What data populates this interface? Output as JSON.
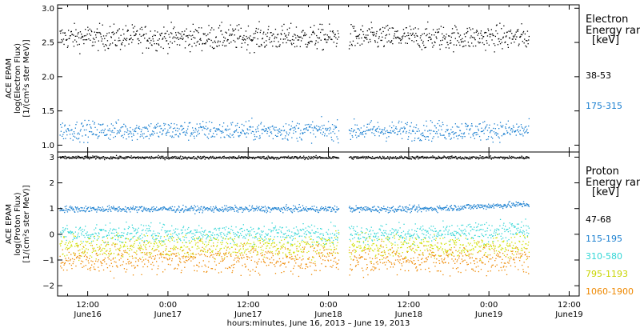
{
  "chart_data": [
    {
      "type": "scatter",
      "panel": "electron",
      "ylabel": [
        "ACE EPAM",
        "log(Electron Flux)",
        "[1/(cm²s ster MeV)]"
      ],
      "ylim": [
        0.9,
        3.05
      ],
      "yticks": [
        1.0,
        1.5,
        2.0,
        2.5,
        3.0
      ],
      "ytick_labels": [
        "1.0",
        "1.5",
        "2.0",
        "2.5",
        "3.0"
      ],
      "legend": {
        "title_lines": [
          "Electron",
          "Energy ranges",
          "[keV]"
        ],
        "placement": "right"
      },
      "series": [
        {
          "name": "38-53",
          "color": "#000000",
          "center": 2.58,
          "scatter": 0.09
        },
        {
          "name": "175-315",
          "color": "#1a7fd0",
          "center": 1.22,
          "scatter": 0.07
        }
      ]
    },
    {
      "type": "scatter",
      "panel": "proton",
      "ylabel": [
        "ACE EPAM",
        "log(Proton Flux)",
        "[1/(cm²s ster MeV)]"
      ],
      "ylim": [
        -2.4,
        3.2
      ],
      "yticks": [
        -2,
        -1,
        0,
        1,
        2,
        3
      ],
      "ytick_labels": [
        "−2",
        "−1",
        "0",
        "1",
        "2",
        "3"
      ],
      "legend": {
        "title_lines": [
          "Proton",
          "Energy ranges",
          "[keV]"
        ],
        "placement": "right"
      },
      "series": [
        {
          "name": "47-68",
          "color": "#000000",
          "center": 3.0,
          "scatter": 0.03
        },
        {
          "name": "115-195",
          "color": "#1a7fd0",
          "center": 1.0,
          "scatter": 0.06
        },
        {
          "name": "310-580",
          "color": "#33d6d6",
          "center": 0.05,
          "scatter": 0.18
        },
        {
          "name": "795-1193",
          "color": "#cfe000",
          "center": -0.45,
          "scatter": 0.22
        },
        {
          "name": "1060-1900",
          "color": "#ee8800",
          "center": -0.95,
          "scatter": 0.28
        }
      ]
    }
  ],
  "x_axis": {
    "xlabel": "hours:minutes, June 16, 2013 – June 19, 2013",
    "range_hours": [
      7.5,
      85.5
    ],
    "data_gap_hours": [
      49.5,
      51.0
    ],
    "data_end_hours": 78.0,
    "ticks": [
      {
        "hours": 12,
        "time": "12:00",
        "date": "June16"
      },
      {
        "hours": 24,
        "time": "0:00",
        "date": "June17"
      },
      {
        "hours": 36,
        "time": "12:00",
        "date": "June17"
      },
      {
        "hours": 48,
        "time": "0:00",
        "date": "June18"
      },
      {
        "hours": 60,
        "time": "12:00",
        "date": "June18"
      },
      {
        "hours": 72,
        "time": "0:00",
        "date": "June19"
      },
      {
        "hours": 84,
        "time": "12:00",
        "date": "June19"
      }
    ]
  }
}
